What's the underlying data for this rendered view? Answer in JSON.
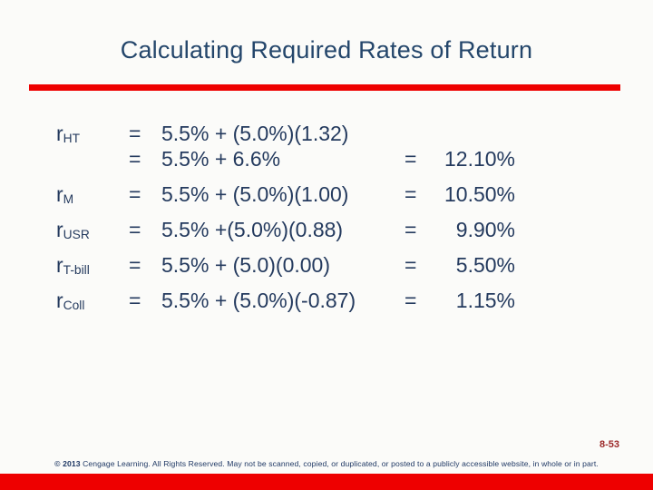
{
  "slide": {
    "title": "Calculating Required Rates of Return",
    "page_number": "8-53",
    "footer": {
      "prefix": "© 2013",
      "text": " Cengage Learning. All Rights Reserved. May not be scanned, copied, or duplicated, or posted to a publicly accessible website, in whole or in part."
    },
    "colors": {
      "title_navy": "#24466b",
      "body_navy": "#243a5e",
      "accent_red": "#ee0000",
      "page_number_red": "#9c2a2a",
      "background": "#fbfbf9"
    },
    "equations": [
      {
        "label_base": "r",
        "label_sub": "HT",
        "eq1": "=",
        "expression": "5.5% + (5.0%)(1.32)",
        "eq2": "",
        "value": ""
      },
      {
        "label_base": "",
        "label_sub": "",
        "eq1": "=",
        "expression": "5.5% + 6.6%",
        "eq2": "=",
        "value": "12.10%"
      },
      {
        "label_base": "r",
        "label_sub": "M",
        "eq1": "=",
        "expression": "5.5% + (5.0%)(1.00)",
        "eq2": "=",
        "value": "10.50%"
      },
      {
        "label_base": "r",
        "label_sub": "USR",
        "eq1": "=",
        "expression": "5.5% +(5.0%)(0.88)",
        "eq2": "=",
        "value": "9.90%"
      },
      {
        "label_base": "r",
        "label_sub": "T-bill",
        "eq1": "=",
        "expression": "5.5% + (5.0)(0.00)",
        "eq2": "=",
        "value": "5.50%"
      },
      {
        "label_base": "r",
        "label_sub": "Coll",
        "eq1": "=",
        "expression": "5.5% + (5.0%)(-0.87)",
        "eq2": "=",
        "value": "1.15%"
      }
    ]
  }
}
